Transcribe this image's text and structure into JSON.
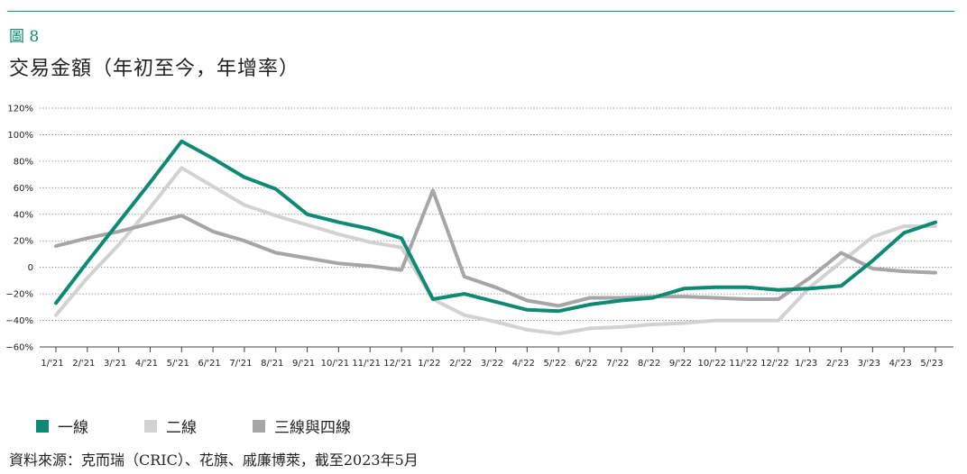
{
  "figure_label": "圖 8",
  "title": "交易金額（年初至今，年增率）",
  "source": "資料來源：克而瑞（CRIC）、花旗、戚廉博萊，截至2023年5月",
  "chart_data": {
    "type": "line",
    "categories": [
      "1/'21",
      "2/'21",
      "3/'21",
      "4/'21",
      "5/'21",
      "6/'21",
      "7/'21",
      "8/'21",
      "9/'21",
      "10/'21",
      "11/'21",
      "12/'21",
      "1/'22",
      "2/'22",
      "3/'22",
      "4/'22",
      "5/'22",
      "6/'22",
      "7/'22",
      "8/'22",
      "9/'22",
      "10/'22",
      "11/'22",
      "12/'22",
      "1/'23",
      "2/'23",
      "3/'23",
      "4/'23",
      "5/'23"
    ],
    "y_ticks": [
      "120%",
      "100%",
      "80%",
      "60%",
      "40%",
      "20%",
      "0",
      "−20%",
      "−40%",
      "−60%"
    ],
    "ylim": [
      -60,
      120
    ],
    "y_step": 20,
    "grid": "horizontal-dotted",
    "legend_position": "bottom-left",
    "series": [
      {
        "name": "一線",
        "color": "#0f8a72",
        "values": [
          -27,
          4,
          34,
          64,
          95,
          82,
          68,
          59,
          40,
          34,
          29,
          22,
          -24,
          -20,
          -26,
          -32,
          -33,
          -28,
          -25,
          -23,
          -16,
          -15,
          -15,
          -17,
          -16,
          -14,
          5,
          26,
          34
        ]
      },
      {
        "name": "二線",
        "color": "#d2d2d2",
        "values": [
          -36,
          -8,
          17,
          45,
          75,
          61,
          47,
          39,
          32,
          25,
          19,
          15,
          -24,
          -36,
          -41,
          -47,
          -50,
          -46,
          -45,
          -43,
          -42,
          -40,
          -40,
          -40,
          -15,
          4,
          23,
          31,
          31
        ]
      },
      {
        "name": "三線與四線",
        "color": "#a6a6a8",
        "values": [
          16,
          22,
          27,
          33,
          39,
          27,
          20,
          11,
          7,
          3,
          1,
          -2,
          58,
          -7,
          -15,
          -25,
          -29,
          -23,
          -23,
          -22,
          -22,
          -23,
          -24,
          -24,
          -8,
          11,
          -1,
          -3,
          -4
        ]
      }
    ]
  }
}
